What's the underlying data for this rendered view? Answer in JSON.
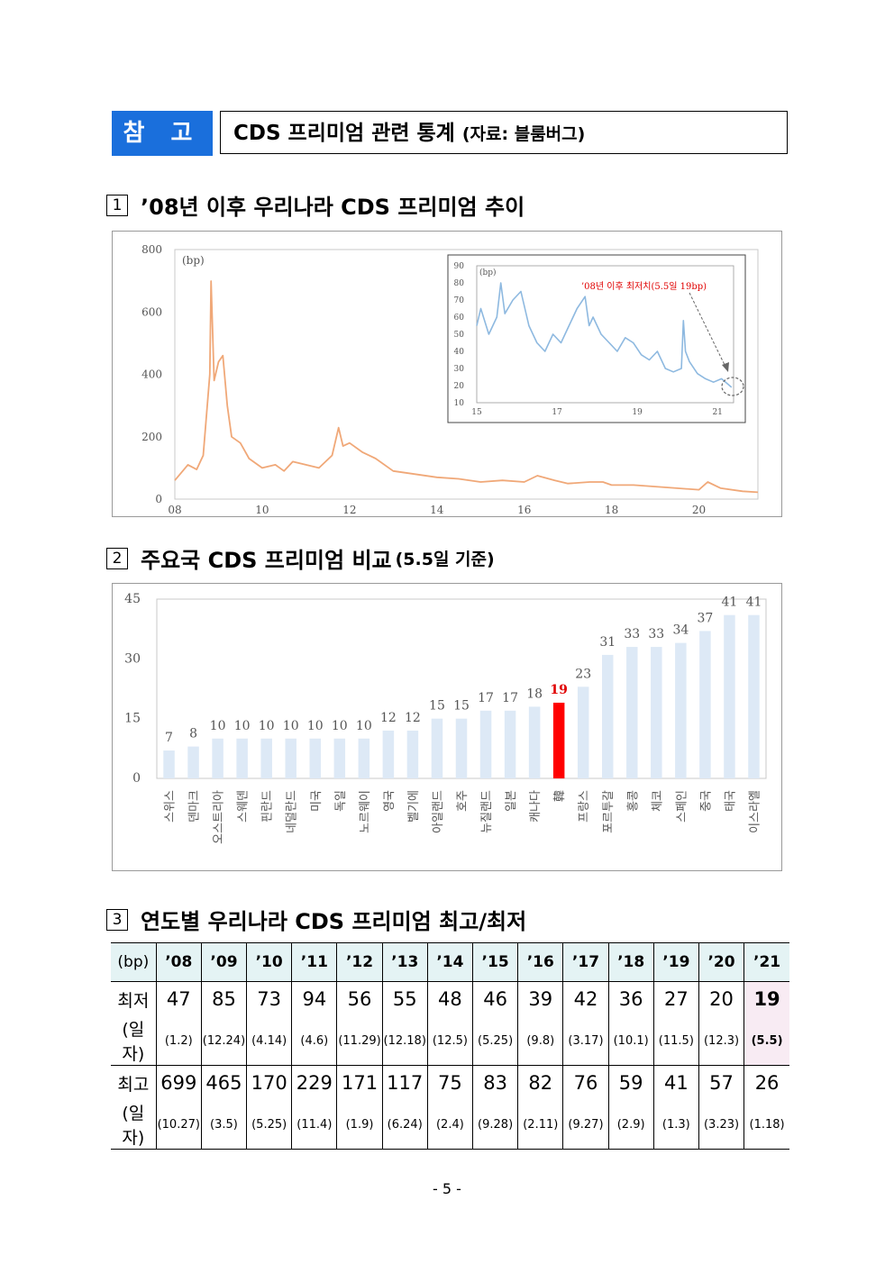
{
  "header": {
    "badge": "참 고",
    "title": "CDS 프리미엄 관련 통계",
    "source": "(자료: 블룸버그)"
  },
  "section1": {
    "num": "1",
    "title": "’08년 이후 우리나라 CDS 프리미엄 추이",
    "chart_data": {
      "type": "line",
      "unit": "(bp)",
      "color": "#f0a878",
      "x_ticks": [
        "08",
        "10",
        "12",
        "14",
        "16",
        "18",
        "20"
      ],
      "y_ticks": [
        "0",
        "200",
        "400",
        "600",
        "800"
      ],
      "ylim": [
        0,
        800
      ],
      "series": [
        {
          "x": [
            2008.0,
            2008.3,
            2008.5,
            2008.65,
            2008.8,
            2008.83,
            2008.9,
            2009.0,
            2009.1,
            2009.2,
            2009.3,
            2009.5,
            2009.7,
            2010.0,
            2010.3,
            2010.5,
            2010.7,
            2011.0,
            2011.3,
            2011.6,
            2011.75,
            2011.85,
            2012.0,
            2012.3,
            2012.6,
            2013.0,
            2013.5,
            2014.0,
            2014.5,
            2015.0,
            2015.5,
            2016.0,
            2016.3,
            2016.7,
            2017.0,
            2017.5,
            2017.8,
            2018.0,
            2018.5,
            2019.0,
            2019.5,
            2020.0,
            2020.2,
            2020.5,
            2021.0,
            2021.35
          ],
          "y": [
            60,
            110,
            95,
            140,
            400,
            699,
            380,
            440,
            460,
            300,
            200,
            180,
            130,
            100,
            110,
            90,
            120,
            110,
            100,
            140,
            229,
            170,
            180,
            150,
            130,
            90,
            80,
            70,
            65,
            55,
            60,
            55,
            75,
            60,
            50,
            55,
            55,
            45,
            45,
            40,
            35,
            30,
            55,
            35,
            25,
            22
          ]
        }
      ]
    },
    "inset": {
      "chart_data": {
        "type": "line",
        "unit": "(bp)",
        "color": "#8eb9e0",
        "x_ticks": [
          "15",
          "17",
          "19",
          "21"
        ],
        "y_ticks": [
          "10",
          "20",
          "30",
          "40",
          "50",
          "60",
          "70",
          "80",
          "90"
        ],
        "ylim": [
          10,
          90
        ],
        "annotation": "’08년 이후 최저치(5.5일 19bp)",
        "series": [
          {
            "x": [
              2015.0,
              2015.1,
              2015.3,
              2015.5,
              2015.6,
              2015.7,
              2015.9,
              2016.1,
              2016.3,
              2016.5,
              2016.7,
              2016.9,
              2017.1,
              2017.3,
              2017.5,
              2017.7,
              2017.8,
              2017.9,
              2018.1,
              2018.3,
              2018.5,
              2018.7,
              2018.9,
              2019.1,
              2019.3,
              2019.5,
              2019.7,
              2019.9,
              2020.1,
              2020.15,
              2020.2,
              2020.3,
              2020.5,
              2020.7,
              2020.9,
              2021.1,
              2021.35
            ],
            "y": [
              55,
              65,
              50,
              60,
              80,
              62,
              70,
              75,
              55,
              45,
              40,
              50,
              45,
              55,
              65,
              72,
              55,
              60,
              50,
              45,
              40,
              48,
              45,
              38,
              35,
              40,
              30,
              28,
              30,
              58,
              40,
              34,
              27,
              24,
              22,
              24,
              19
            ]
          }
        ]
      }
    }
  },
  "section2": {
    "num": "2",
    "title": "주요국 CDS 프리미엄 비교",
    "sub": "(5.5일 기준)",
    "chart_data": {
      "type": "bar",
      "ylim": [
        0,
        45
      ],
      "y_ticks": [
        "0",
        "15",
        "30",
        "45"
      ],
      "bar_color": "#dde9f6",
      "highlight_color": "#ff0000",
      "highlight_index": 16,
      "categories": [
        "스위스",
        "덴마크",
        "오스트리아",
        "스웨덴",
        "핀란드",
        "네덜란드",
        "미국",
        "독일",
        "노르웨이",
        "영국",
        "벨기에",
        "아일랜드",
        "호주",
        "뉴질랜드",
        "일본",
        "캐나다",
        "韓",
        "프랑스",
        "포르투갈",
        "홍콩",
        "체코",
        "스페인",
        "중국",
        "태국",
        "이스라엘"
      ],
      "values": [
        7,
        8,
        10,
        10,
        10,
        10,
        10,
        10,
        10,
        12,
        12,
        15,
        15,
        17,
        17,
        18,
        19,
        23,
        31,
        33,
        33,
        34,
        37,
        41,
        41
      ]
    }
  },
  "section3": {
    "num": "3",
    "title": "연도별 우리나라 CDS 프리미엄 최고/최저",
    "table": {
      "unit": "(bp)",
      "years": [
        "’08",
        "’09",
        "’10",
        "’11",
        "’12",
        "’13",
        "’14",
        "’15",
        "’16",
        "’17",
        "’18",
        "’19",
        "’20",
        "’21"
      ],
      "min_label": "최저",
      "date_label": "(일자)",
      "max_label": "최고",
      "min": [
        "47",
        "85",
        "73",
        "94",
        "56",
        "55",
        "48",
        "46",
        "39",
        "42",
        "36",
        "27",
        "20",
        "19"
      ],
      "min_date": [
        "(1.2)",
        "(12.24)",
        "(4.14)",
        "(4.6)",
        "(11.29)",
        "(12.18)",
        "(12.5)",
        "(5.25)",
        "(9.8)",
        "(3.17)",
        "(10.1)",
        "(11.5)",
        "(12.3)",
        "(5.5)"
      ],
      "max": [
        "699",
        "465",
        "170",
        "229",
        "171",
        "117",
        "75",
        "83",
        "82",
        "76",
        "59",
        "41",
        "57",
        "26"
      ],
      "max_date": [
        "(10.27)",
        "(3.5)",
        "(5.25)",
        "(11.4)",
        "(1.9)",
        "(6.24)",
        "(2.4)",
        "(9.28)",
        "(2.11)",
        "(9.27)",
        "(2.9)",
        "(1.3)",
        "(3.23)",
        "(1.18)"
      ]
    }
  },
  "footer": {
    "page": "- 5 -"
  }
}
